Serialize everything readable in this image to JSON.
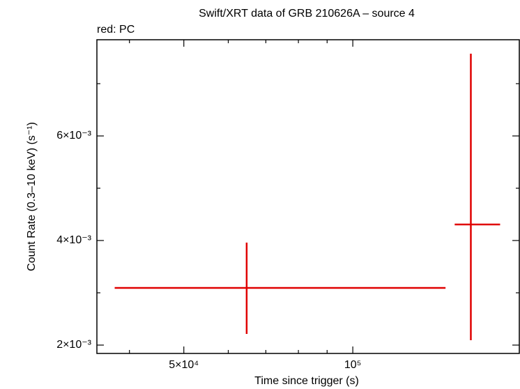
{
  "chart_data": {
    "type": "errorbar",
    "title": "Swift/XRT data of GRB 210626A – source 4",
    "subtitle": "red: PC",
    "x_label": "Time since trigger (s)",
    "y_label": "Count Rate (0.3–10 keV) (s⁻¹)",
    "xscale": "log",
    "yscale": "linear",
    "xlim": [
      35000,
      198000
    ],
    "ylim": [
      0.00184,
      0.00784
    ],
    "xticks": [
      {
        "value": 50000,
        "label": "5×10⁴"
      },
      {
        "value": 100000,
        "label": "10⁵"
      }
    ],
    "yticks": [
      {
        "value": 0.002,
        "label": "2×10⁻³"
      },
      {
        "value": 0.004,
        "label": "4×10⁻³"
      },
      {
        "value": 0.006,
        "label": "6×10⁻³"
      }
    ],
    "xminor": [
      40000,
      60000,
      70000,
      80000,
      90000
    ],
    "yminor": [
      0.003,
      0.005,
      0.007
    ],
    "series": [
      {
        "color": "#e00000",
        "x": [
          64700,
          162300
        ],
        "xerr_minus": [
          27050,
          10400
        ],
        "xerr_plus": [
          81600,
          20700
        ],
        "y": [
          0.003093,
          0.004307
        ],
        "yerr_minus": [
          0.00088,
          0.002214
        ],
        "yerr_plus": [
          0.000867,
          0.003266
        ]
      }
    ]
  }
}
